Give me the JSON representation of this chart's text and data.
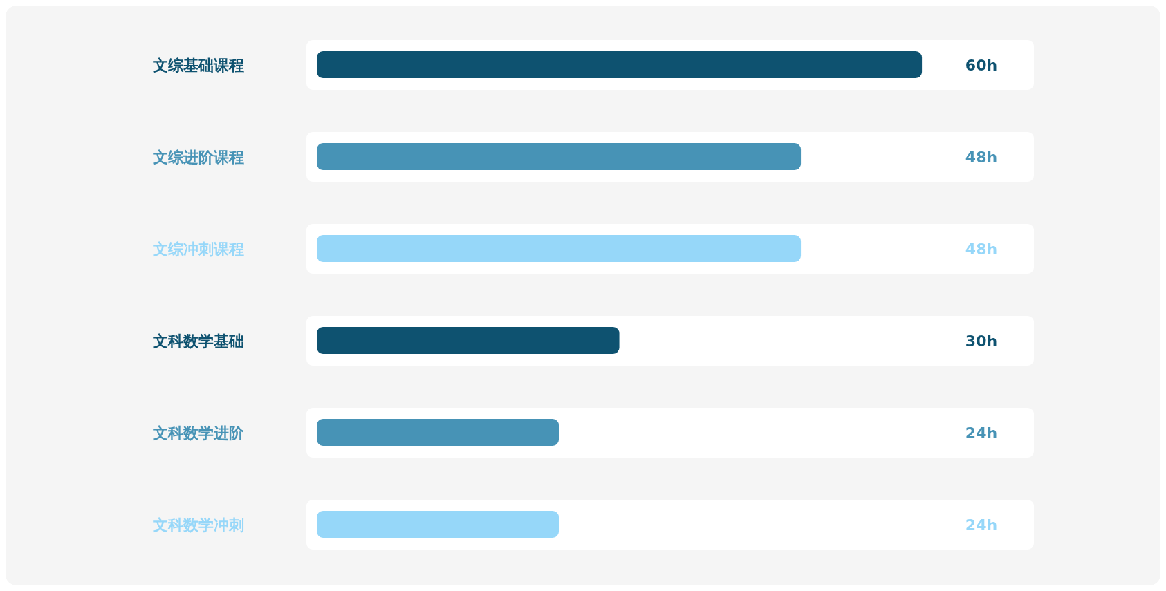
{
  "chart_data": {
    "type": "bar",
    "orientation": "horizontal",
    "categories": [
      "文综基础课程",
      "文综进阶课程",
      "文综冲刺课程",
      "文科数学基础",
      "文科数学进阶",
      "文科数学冲刺"
    ],
    "values": [
      60,
      48,
      48,
      30,
      24,
      24
    ],
    "colors": [
      "#0e5270",
      "#4793b6",
      "#96d7f9",
      "#0e5270",
      "#4793b6",
      "#96d7f9"
    ],
    "value_labels": [
      "60h",
      "48h",
      "48h",
      "30h",
      "24h",
      "24h"
    ]
  }
}
